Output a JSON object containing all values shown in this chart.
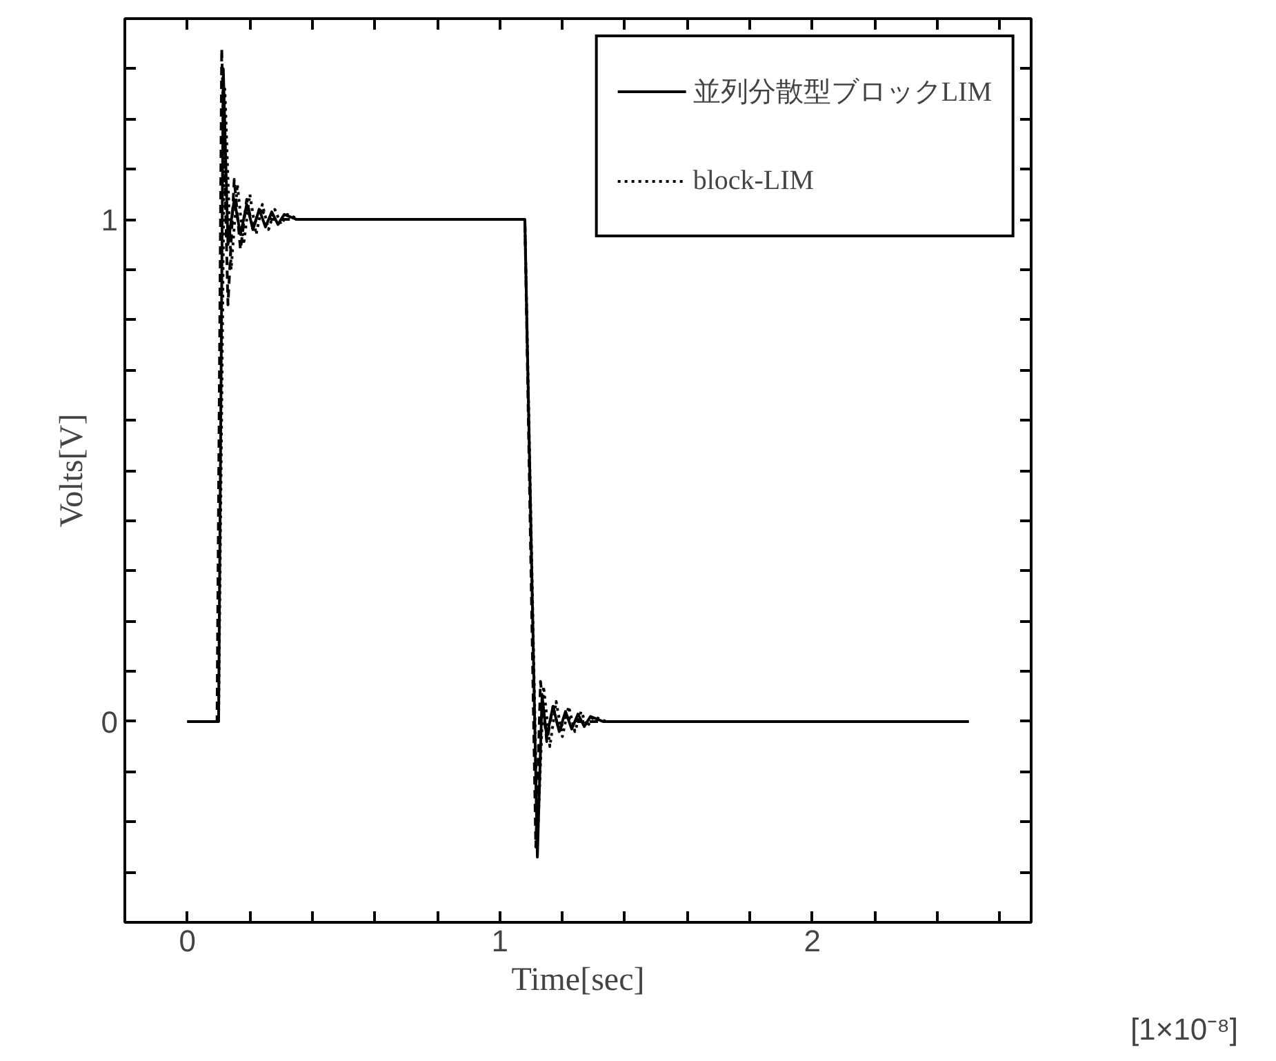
{
  "chart_data": {
    "type": "line",
    "xlabel": "Time[sec]",
    "ylabel": "Volts[V]",
    "annotations": [
      "[1×10⁻⁸]"
    ],
    "xlim": [
      -0.2,
      2.7
    ],
    "ylim": [
      -0.4,
      1.4
    ],
    "xticks": [
      0,
      1,
      2,
      {
        "value": 0.2,
        "label": null
      },
      {
        "value": 0.4,
        "label": null
      },
      {
        "value": 0.6,
        "label": null
      },
      {
        "value": 0.8,
        "label": null
      },
      {
        "value": 1.2,
        "label": null
      },
      {
        "value": 1.4,
        "label": null
      },
      {
        "value": 1.6,
        "label": null
      },
      {
        "value": 1.8,
        "label": null
      },
      {
        "value": 2.2,
        "label": null
      },
      {
        "value": 2.4,
        "label": null
      },
      {
        "value": 2.6,
        "label": null
      }
    ],
    "yticks": [
      0,
      1,
      {
        "value": -0.3,
        "label": null
      },
      {
        "value": -0.2,
        "label": null
      },
      {
        "value": -0.1,
        "label": null
      },
      {
        "value": 0.1,
        "label": null
      },
      {
        "value": 0.2,
        "label": null
      },
      {
        "value": 0.3,
        "label": null
      },
      {
        "value": 0.4,
        "label": null
      },
      {
        "value": 0.5,
        "label": null
      },
      {
        "value": 0.6,
        "label": null
      },
      {
        "value": 0.7,
        "label": null
      },
      {
        "value": 0.8,
        "label": null
      },
      {
        "value": 0.9,
        "label": null
      },
      {
        "value": 1.1,
        "label": null
      },
      {
        "value": 1.2,
        "label": null
      },
      {
        "value": 1.3,
        "label": null
      }
    ],
    "grid": false,
    "legend": "top right",
    "marker": "none",
    "series": [
      {
        "name": "並列分散型ブロックLIM",
        "color": "#000000",
        "line_style": "solid",
        "x": [
          0,
          0.1,
          0.115,
          0.13,
          0.15,
          0.17,
          0.19,
          0.21,
          0.23,
          0.25,
          0.27,
          0.29,
          0.31,
          0.35,
          1.08,
          1.12,
          1.135,
          1.15,
          1.17,
          1.19,
          1.21,
          1.23,
          1.25,
          1.27,
          1.29,
          1.33,
          2.5
        ],
        "values": [
          0,
          0,
          1.3,
          0.95,
          1.04,
          0.97,
          1.03,
          0.98,
          1.02,
          0.985,
          1.015,
          0.99,
          1.01,
          1.0,
          1.0,
          -0.27,
          0.05,
          -0.03,
          0.03,
          -0.02,
          0.02,
          -0.015,
          0.015,
          -0.01,
          0.01,
          0,
          0
        ]
      },
      {
        "name": "block-LIM",
        "color": "#000000",
        "line_style": "dotted",
        "x": [
          0,
          0.1,
          0.12,
          0.14,
          0.16,
          0.18,
          0.2,
          0.22,
          0.24,
          0.26,
          0.28,
          0.3,
          0.32,
          0.36,
          1.08,
          1.12,
          1.14,
          1.16,
          1.18,
          1.2,
          1.22,
          1.24,
          1.26,
          1.28,
          1.3,
          1.34,
          2.5
        ],
        "values": [
          0,
          0,
          1.26,
          0.9,
          1.07,
          0.95,
          1.05,
          0.97,
          1.03,
          0.98,
          1.02,
          0.99,
          1.01,
          1.0,
          1.0,
          -0.24,
          0.07,
          -0.05,
          0.04,
          -0.03,
          0.03,
          -0.02,
          0.02,
          -0.01,
          0.01,
          0,
          0
        ]
      },
      {
        "color": "#000000",
        "line_style": "dashed",
        "x": [
          0,
          0.095,
          0.11,
          0.13,
          0.15,
          0.17,
          0.19,
          0.21,
          0.23,
          0.27,
          1.08,
          1.115,
          1.13,
          1.15,
          1.17,
          1.19,
          1.21,
          1.25,
          2.5
        ],
        "values": [
          0,
          0,
          1.34,
          0.83,
          1.08,
          0.94,
          1.04,
          0.98,
          1.02,
          1.0,
          1.0,
          -0.25,
          0.08,
          -0.04,
          0.03,
          -0.02,
          0.01,
          0,
          0
        ]
      }
    ]
  }
}
